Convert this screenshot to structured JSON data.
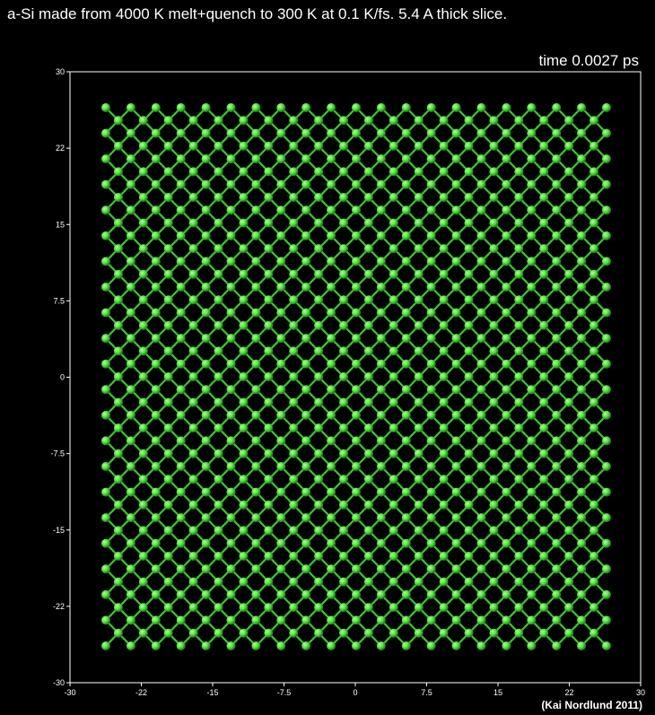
{
  "title": "a-Si made from 4000 K melt+quench to 300 K at 0.1 K/fs. 5.4 A thick slice.",
  "time_label": "time 0.0027 ps",
  "credit": "(Kai Nordlund 2011)",
  "colors": {
    "background": "#000000",
    "frame": "#ffffff",
    "atom": "#4be13a",
    "atom_highlight": "#b9ff9a",
    "bond": "#3cc82c"
  },
  "axes": {
    "x_ticks": [
      "-30",
      "-22",
      "-15",
      "-7.5",
      "0",
      "7.5",
      "15",
      "22",
      "30"
    ],
    "y_ticks": [
      "30",
      "22",
      "15",
      "7.5",
      "0",
      "-7.5",
      "-15",
      "-22",
      "-30"
    ]
  }
}
